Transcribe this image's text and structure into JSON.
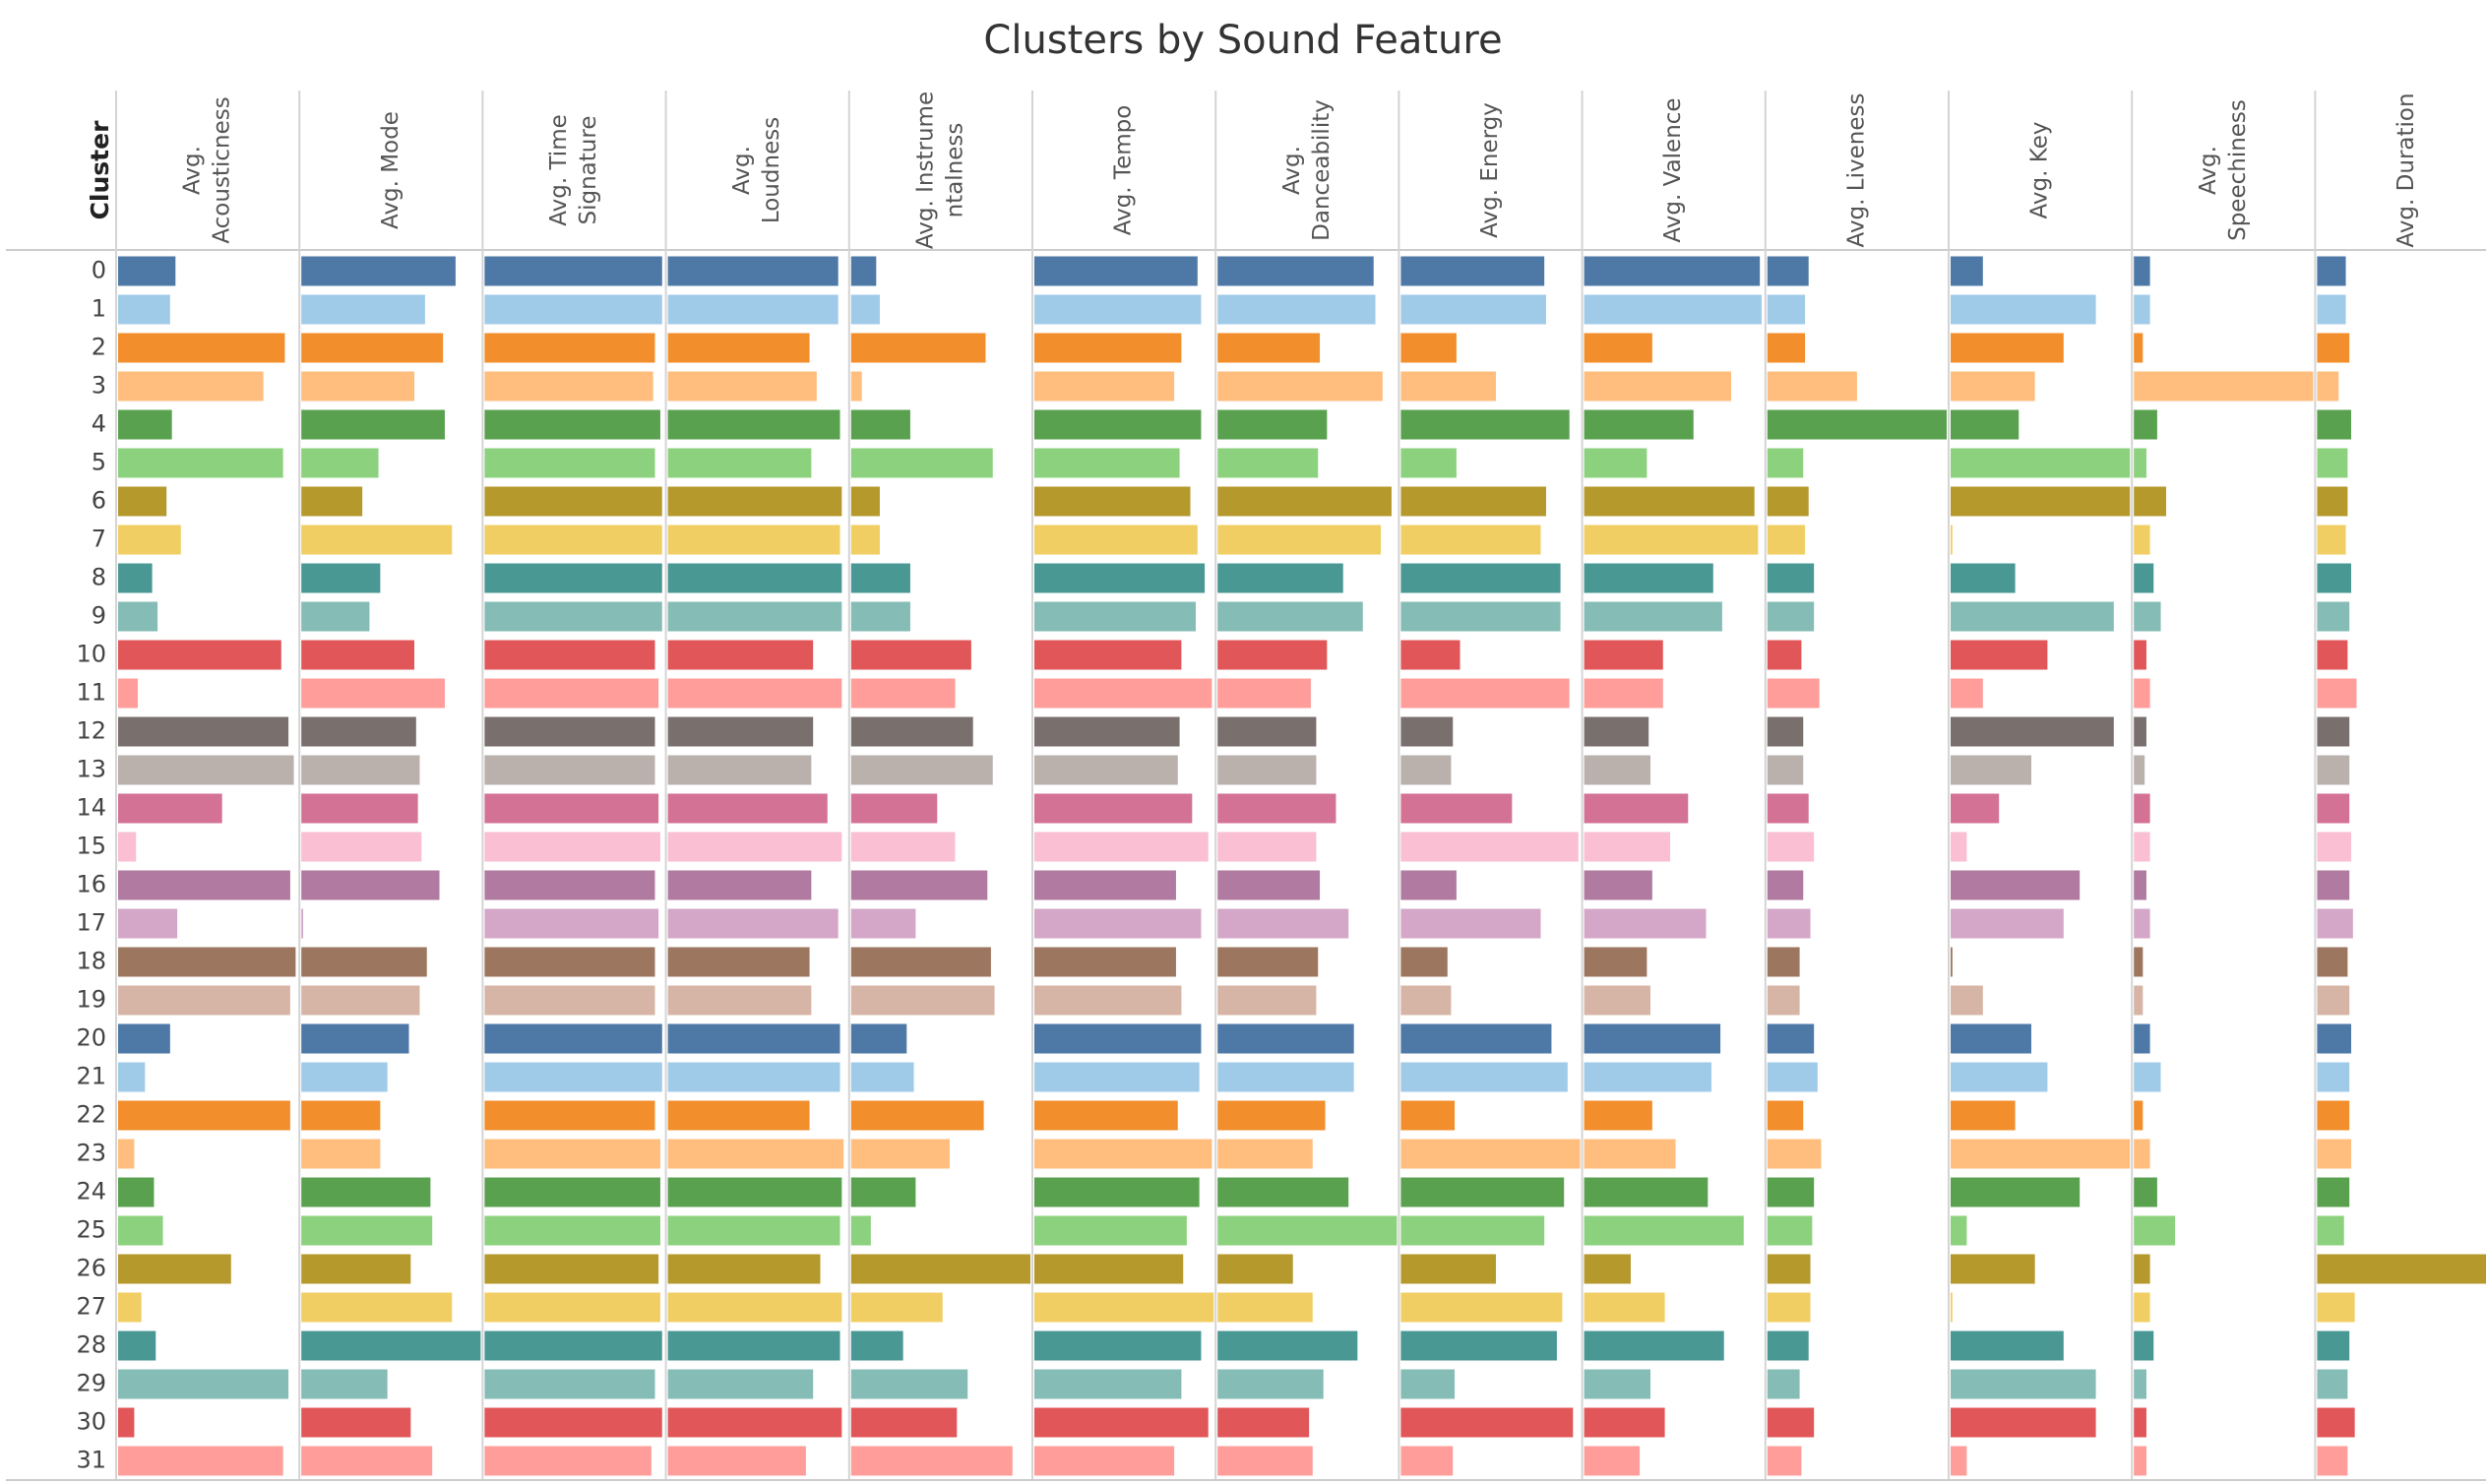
{
  "chart_data": {
    "type": "bar",
    "title": "Clusters by Sound Feature",
    "row_header": "Cluster",
    "categories": [
      "0",
      "1",
      "2",
      "3",
      "4",
      "5",
      "6",
      "7",
      "8",
      "9",
      "10",
      "11",
      "12",
      "13",
      "14",
      "15",
      "16",
      "17",
      "18",
      "19",
      "20",
      "21",
      "22",
      "23",
      "24",
      "25",
      "26",
      "27",
      "28",
      "29",
      "30",
      "31"
    ],
    "colors": [
      "#4e79a7",
      "#a0cbe8",
      "#f28e2b",
      "#ffbe7d",
      "#59a14f",
      "#8cd17d",
      "#b6992d",
      "#f1ce63",
      "#499894",
      "#86bcb6",
      "#e15759",
      "#ff9d9a",
      "#79706e",
      "#bab0ac",
      "#d37295",
      "#fabfd2",
      "#b07aa1",
      "#d4a6c8",
      "#9d7660",
      "#d7b5a6",
      "#4e79a7",
      "#a0cbe8",
      "#f28e2b",
      "#ffbe7d",
      "#59a14f",
      "#8cd17d",
      "#b6992d",
      "#f1ce63",
      "#499894",
      "#86bcb6",
      "#e15759",
      "#ff9d9a"
    ],
    "series": [
      {
        "name": "Avg. Acousticness",
        "label_lines": [
          "Avg.",
          "Acousticness"
        ],
        "max": 1.0,
        "values": [
          0.32,
          0.29,
          0.93,
          0.81,
          0.3,
          0.92,
          0.27,
          0.35,
          0.19,
          0.22,
          0.91,
          0.11,
          0.95,
          0.98,
          0.58,
          0.1,
          0.96,
          0.33,
          0.99,
          0.96,
          0.29,
          0.15,
          0.96,
          0.09,
          0.2,
          0.25,
          0.63,
          0.13,
          0.21,
          0.95,
          0.09,
          0.92
        ]
      },
      {
        "name": "Avg. Mode",
        "label_lines": [
          "Avg. Mode"
        ],
        "max": 1.0,
        "values": [
          0.86,
          0.69,
          0.79,
          0.63,
          0.8,
          0.43,
          0.34,
          0.84,
          0.44,
          0.38,
          0.63,
          0.8,
          0.64,
          0.66,
          0.65,
          0.67,
          0.77,
          0.01,
          0.7,
          0.66,
          0.6,
          0.48,
          0.44,
          0.44,
          0.72,
          0.73,
          0.61,
          0.84,
          1.0,
          0.48,
          0.61,
          0.73
        ]
      },
      {
        "name": "Avg. Time Signature",
        "label_lines": [
          "Avg. Time",
          "Signature"
        ],
        "max": 5.0,
        "values": [
          4.95,
          4.95,
          4.75,
          4.7,
          4.9,
          4.75,
          4.95,
          4.95,
          4.95,
          4.95,
          4.75,
          4.85,
          4.75,
          4.75,
          4.85,
          4.9,
          4.75,
          4.85,
          4.75,
          4.75,
          4.95,
          4.95,
          4.75,
          4.9,
          4.9,
          4.9,
          4.85,
          4.9,
          4.95,
          4.75,
          4.95,
          4.65
        ]
      },
      {
        "name": "Avg. Loudness",
        "label_lines": [
          "Avg.",
          "Loudness"
        ],
        "max": 1.0,
        "values": [
          0.95,
          0.95,
          0.79,
          0.83,
          0.96,
          0.8,
          0.97,
          0.96,
          0.97,
          0.97,
          0.81,
          0.97,
          0.81,
          0.8,
          0.89,
          0.97,
          0.8,
          0.95,
          0.79,
          0.8,
          0.96,
          0.96,
          0.79,
          0.98,
          0.97,
          0.96,
          0.85,
          0.97,
          0.96,
          0.81,
          0.97,
          0.77
        ]
      },
      {
        "name": "Avg. Instrumentalness",
        "label_lines": [
          "Avg. Instrume",
          "ntalness"
        ],
        "max": 1.0,
        "values": [
          0.14,
          0.16,
          0.75,
          0.06,
          0.33,
          0.79,
          0.16,
          0.16,
          0.33,
          0.33,
          0.67,
          0.58,
          0.68,
          0.79,
          0.48,
          0.58,
          0.76,
          0.36,
          0.78,
          0.8,
          0.31,
          0.35,
          0.74,
          0.55,
          0.36,
          0.11,
          1.0,
          0.51,
          0.29,
          0.65,
          0.59,
          0.9
        ]
      },
      {
        "name": "Avg. Tempo",
        "label_lines": [
          "Avg. Tempo"
        ],
        "max": 1.0,
        "values": [
          0.91,
          0.93,
          0.82,
          0.78,
          0.93,
          0.81,
          0.87,
          0.91,
          0.95,
          0.9,
          0.82,
          0.99,
          0.81,
          0.8,
          0.88,
          0.97,
          0.79,
          0.93,
          0.79,
          0.82,
          0.93,
          0.92,
          0.8,
          0.99,
          0.92,
          0.85,
          0.83,
          1.0,
          0.93,
          0.82,
          0.97,
          0.78
        ]
      },
      {
        "name": "Avg. Danceability",
        "label_lines": [
          "Avg.",
          "Danceability"
        ],
        "max": 1.0,
        "values": [
          0.87,
          0.88,
          0.57,
          0.92,
          0.61,
          0.56,
          0.97,
          0.91,
          0.7,
          0.81,
          0.61,
          0.52,
          0.55,
          0.55,
          0.66,
          0.55,
          0.57,
          0.73,
          0.56,
          0.55,
          0.76,
          0.76,
          0.6,
          0.53,
          0.73,
          1.0,
          0.42,
          0.53,
          0.78,
          0.59,
          0.51,
          0.53
        ]
      },
      {
        "name": "Avg. Energy",
        "label_lines": [
          "Avg. Energy"
        ],
        "max": 1.0,
        "values": [
          0.8,
          0.81,
          0.31,
          0.53,
          0.94,
          0.31,
          0.81,
          0.78,
          0.89,
          0.89,
          0.33,
          0.94,
          0.29,
          0.28,
          0.62,
          0.99,
          0.31,
          0.78,
          0.26,
          0.28,
          0.84,
          0.93,
          0.3,
          1.0,
          0.91,
          0.8,
          0.53,
          0.9,
          0.87,
          0.3,
          0.96,
          0.29
        ]
      },
      {
        "name": "Avg. Valence",
        "label_lines": [
          "Avg. Valence"
        ],
        "max": 1.0,
        "values": [
          0.98,
          0.99,
          0.38,
          0.82,
          0.61,
          0.35,
          0.95,
          0.97,
          0.72,
          0.77,
          0.44,
          0.44,
          0.36,
          0.37,
          0.58,
          0.48,
          0.38,
          0.68,
          0.35,
          0.37,
          0.76,
          0.71,
          0.38,
          0.51,
          0.69,
          0.89,
          0.26,
          0.45,
          0.78,
          0.37,
          0.45,
          0.31
        ]
      },
      {
        "name": "Avg. Liveness",
        "label_lines": [
          "Avg. Liveness"
        ],
        "max": 1.0,
        "values": [
          0.23,
          0.21,
          0.21,
          0.5,
          1.0,
          0.2,
          0.23,
          0.21,
          0.26,
          0.26,
          0.19,
          0.29,
          0.2,
          0.2,
          0.23,
          0.26,
          0.2,
          0.24,
          0.18,
          0.18,
          0.26,
          0.28,
          0.2,
          0.3,
          0.26,
          0.25,
          0.24,
          0.24,
          0.23,
          0.18,
          0.26,
          0.19
        ]
      },
      {
        "name": "Avg. Key",
        "label_lines": [
          "Avg. Key"
        ],
        "max": 1.0,
        "values": [
          0.18,
          0.81,
          0.63,
          0.47,
          0.38,
          1.0,
          1.0,
          0.01,
          0.36,
          0.91,
          0.54,
          0.18,
          0.91,
          0.45,
          0.27,
          0.09,
          0.72,
          0.63,
          0.01,
          0.18,
          0.45,
          0.54,
          0.36,
          1.0,
          0.72,
          0.09,
          0.47,
          0.01,
          0.63,
          0.81,
          0.81,
          0.09
        ]
      },
      {
        "name": "Avg. Speechiness",
        "label_lines": [
          "Avg.",
          "Speechiness"
        ],
        "max": 1.0,
        "values": [
          0.09,
          0.09,
          0.05,
          1.0,
          0.13,
          0.07,
          0.18,
          0.09,
          0.11,
          0.15,
          0.07,
          0.09,
          0.07,
          0.06,
          0.09,
          0.09,
          0.07,
          0.09,
          0.05,
          0.05,
          0.09,
          0.15,
          0.05,
          0.09,
          0.13,
          0.23,
          0.09,
          0.09,
          0.11,
          0.07,
          0.07,
          0.07
        ]
      },
      {
        "name": "Avg. Duration",
        "label_lines": [
          "Avg. Duration"
        ],
        "max": 1.0,
        "values": [
          0.16,
          0.16,
          0.18,
          0.12,
          0.19,
          0.17,
          0.17,
          0.16,
          0.19,
          0.18,
          0.17,
          0.22,
          0.18,
          0.18,
          0.18,
          0.19,
          0.18,
          0.2,
          0.17,
          0.18,
          0.19,
          0.18,
          0.18,
          0.19,
          0.18,
          0.15,
          1.0,
          0.21,
          0.18,
          0.17,
          0.21,
          0.17
        ]
      }
    ],
    "grid": false,
    "legend": "none"
  }
}
